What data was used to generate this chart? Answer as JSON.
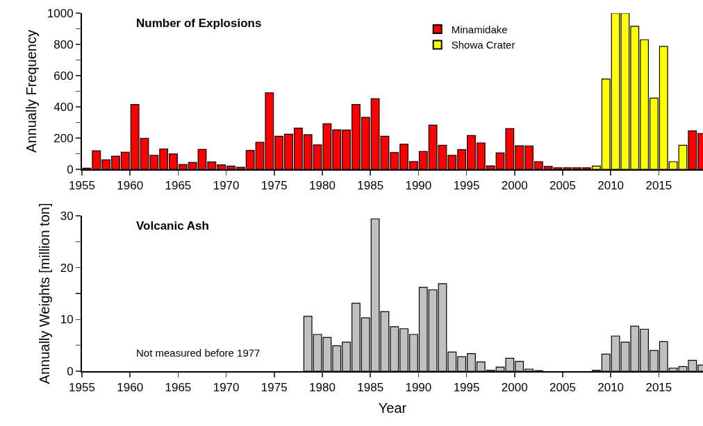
{
  "chart_data": [
    {
      "type": "bar",
      "title": "Number of Explosions",
      "ylabel": "Annually Frequency",
      "x": [
        1955.5,
        1956.5,
        1957.5,
        1958.5,
        1959.5,
        1960.5,
        1961.5,
        1962.5,
        1963.5,
        1964.5,
        1965.5,
        1966.5,
        1967.5,
        1968.5,
        1969.5,
        1970.5,
        1971.5,
        1972.5,
        1973.5,
        1974.5,
        1975.5,
        1976.5,
        1977.5,
        1978.5,
        1979.5,
        1980.5,
        1981.5,
        1982.5,
        1983.5,
        1984.5,
        1985.5,
        1986.5,
        1987.5,
        1988.5,
        1989.5,
        1990.5,
        1991.5,
        1992.5,
        1993.5,
        1994.5,
        1995.5,
        1996.5,
        1997.5,
        1998.5,
        1999.5,
        2000.5,
        2001.5,
        2002.5,
        2003.5,
        2004.5,
        2005.5,
        2006.5,
        2007.5,
        2008.5,
        2009.5,
        2010.5,
        2011.5,
        2012.5,
        2013.5,
        2014.5,
        2015.5,
        2016.5,
        2017.5,
        2018.5,
        2019.5
      ],
      "series": [
        {
          "name": "Minamidake",
          "color": "#ff0000",
          "values": [
            7,
            118,
            61,
            84,
            110,
            415,
            199,
            90,
            130,
            98,
            31,
            44,
            127,
            47,
            28,
            21,
            13,
            121,
            173,
            490,
            212,
            225,
            264,
            222,
            156,
            292,
            253,
            252,
            415,
            333,
            452,
            212,
            107,
            161,
            50,
            114,
            283,
            154,
            90,
            126,
            216,
            169,
            22,
            105,
            261,
            151,
            150,
            49,
            18,
            10,
            10,
            10,
            10,
            null,
            null,
            null,
            null,
            null,
            null,
            null,
            null,
            null,
            null,
            246,
            230
          ]
        },
        {
          "name": "Showa Crater",
          "color": "#ffff00",
          "values": [
            null,
            null,
            null,
            null,
            null,
            null,
            null,
            null,
            null,
            null,
            null,
            null,
            null,
            null,
            null,
            null,
            null,
            null,
            null,
            null,
            null,
            null,
            null,
            null,
            null,
            null,
            null,
            null,
            null,
            null,
            null,
            null,
            null,
            null,
            null,
            null,
            null,
            null,
            null,
            null,
            null,
            null,
            null,
            null,
            null,
            null,
            null,
            null,
            null,
            null,
            null,
            null,
            null,
            21,
            578,
            1000,
            1000,
            916,
            830,
            456,
            787,
            49,
            154,
            null,
            null
          ]
        }
      ],
      "xlim": [
        1955,
        2019.6
      ],
      "xticks": [
        1955,
        1960,
        1965,
        1970,
        1975,
        1980,
        1985,
        1990,
        1995,
        2000,
        2005,
        2010,
        2015
      ],
      "ylim": [
        0,
        1000
      ],
      "yticks": [
        0,
        {
          "value": 100,
          "label": null
        },
        200,
        {
          "value": 300,
          "label": null
        },
        400,
        {
          "value": 500,
          "label": null
        },
        600,
        {
          "value": 700,
          "label": null
        },
        800,
        {
          "value": 900,
          "label": null
        },
        1000
      ],
      "legend": "top"
    },
    {
      "type": "bar",
      "title": "Volcanic Ash",
      "ylabel": "Annually Weights [million ton]",
      "xlabel": "Year",
      "x": [
        1978.5,
        1979.5,
        1980.5,
        1981.5,
        1982.5,
        1983.5,
        1984.5,
        1985.5,
        1986.5,
        1987.5,
        1988.5,
        1989.5,
        1990.5,
        1991.5,
        1992.5,
        1993.5,
        1994.5,
        1995.5,
        1996.5,
        1997.5,
        1998.5,
        1999.5,
        2000.5,
        2001.5,
        2002.5,
        2003.5,
        2004.5,
        2005.5,
        2006.5,
        2007.5,
        2008.5,
        2009.5,
        2010.5,
        2011.5,
        2012.5,
        2013.5,
        2014.5,
        2015.5,
        2016.5,
        2017.5,
        2018.5,
        2019.5
      ],
      "series": [
        {
          "color": "#c0c0c0",
          "values": [
            10.6,
            7.1,
            6.5,
            4.9,
            5.6,
            13.1,
            10.3,
            29.4,
            11.5,
            8.6,
            8.2,
            7.1,
            16.2,
            15.7,
            16.9,
            3.7,
            2.8,
            3.4,
            1.8,
            0.2,
            0.8,
            2.5,
            1.9,
            0.4,
            0.1,
            0,
            0,
            0,
            0,
            0,
            0.2,
            3.3,
            6.8,
            5.6,
            8.7,
            8.1,
            4.0,
            5.7,
            0.6,
            0.9,
            2.1,
            1.2
          ]
        }
      ],
      "xlim": [
        1955,
        2019.6
      ],
      "xticks": [
        1955,
        1960,
        1965,
        1970,
        1975,
        1980,
        1985,
        1990,
        1995,
        2000,
        2005,
        2010,
        2015
      ],
      "ylim": [
        0,
        30
      ],
      "yticks": [
        0,
        {
          "value": 5,
          "label": null
        },
        10,
        {
          "value": 15,
          "label": null
        },
        20,
        {
          "value": 25,
          "label": null
        },
        30
      ],
      "annotations": [
        "Not measured before 1977"
      ]
    }
  ]
}
